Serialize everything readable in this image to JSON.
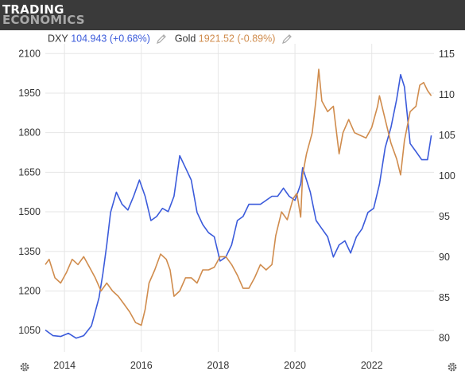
{
  "brand": {
    "line1": "TRADING",
    "line2": "ECONOMICS"
  },
  "legend": {
    "dxy_name": "DXY",
    "dxy_value": "104.943 (+0.68%)",
    "gold_name": "Gold",
    "gold_value": "1921.52 (-0.89%)"
  },
  "colors": {
    "dxy": "#3b5bdb",
    "gold": "#d08c4d",
    "grid": "#e6e6e6",
    "axis_text": "#333333"
  },
  "icons": [
    "pencil-icon",
    "gear-icon"
  ],
  "chart_data": {
    "type": "line",
    "x_ticks": [
      "2014",
      "2016",
      "2018",
      "2020",
      "2022"
    ],
    "left_axis": {
      "ticks": [
        1050,
        1200,
        1350,
        1500,
        1650,
        1800,
        1950,
        2100
      ],
      "range": [
        969,
        2137
      ]
    },
    "right_axis": {
      "ticks": [
        80,
        85,
        90,
        95,
        100,
        105,
        110,
        115
      ],
      "range": [
        78.3,
        116.3
      ]
    },
    "grid": true,
    "series": [
      {
        "name": "DXY",
        "axis": "right",
        "x": [
          2013.5,
          2013.7,
          2013.9,
          2014.1,
          2014.3,
          2014.5,
          2014.7,
          2014.9,
          2015.0,
          2015.1,
          2015.2,
          2015.35,
          2015.5,
          2015.65,
          2015.8,
          2015.95,
          2016.1,
          2016.25,
          2016.4,
          2016.55,
          2016.7,
          2016.85,
          2017.0,
          2017.15,
          2017.3,
          2017.45,
          2017.6,
          2017.75,
          2017.9,
          2018.05,
          2018.2,
          2018.35,
          2018.5,
          2018.65,
          2018.8,
          2018.95,
          2019.1,
          2019.25,
          2019.4,
          2019.55,
          2019.7,
          2019.85,
          2020.0,
          2020.15,
          2020.2,
          2020.3,
          2020.4,
          2020.55,
          2020.7,
          2020.85,
          2021.0,
          2021.15,
          2021.3,
          2021.45,
          2021.6,
          2021.75,
          2021.9,
          2022.05,
          2022.2,
          2022.35,
          2022.5,
          2022.65,
          2022.75,
          2022.85,
          2023.0,
          2023.15,
          2023.3,
          2023.45,
          2023.55
        ],
        "values": [
          81.0,
          80.3,
          80.2,
          80.6,
          80.0,
          80.3,
          81.5,
          85.0,
          88.0,
          91.5,
          95.5,
          98.0,
          96.5,
          95.8,
          97.5,
          99.5,
          97.5,
          94.5,
          95.0,
          96.0,
          95.6,
          97.5,
          102.5,
          101.0,
          99.5,
          95.5,
          94.0,
          93.0,
          92.5,
          89.5,
          90.0,
          91.5,
          94.5,
          95.0,
          96.5,
          96.5,
          96.5,
          97.0,
          97.5,
          97.5,
          98.5,
          97.5,
          97.0,
          99.0,
          101.0,
          99.5,
          98.0,
          94.5,
          93.5,
          92.5,
          90.0,
          91.5,
          92.0,
          90.5,
          92.5,
          93.5,
          95.5,
          96.0,
          99.0,
          103.5,
          106.0,
          109.5,
          112.5,
          111.0,
          104.0,
          103.0,
          102.0,
          102.0,
          105.0
        ]
      },
      {
        "name": "Gold",
        "axis": "left",
        "x": [
          2013.5,
          2013.6,
          2013.75,
          2013.9,
          2014.05,
          2014.2,
          2014.35,
          2014.5,
          2014.65,
          2014.8,
          2014.95,
          2015.1,
          2015.25,
          2015.4,
          2015.55,
          2015.7,
          2015.85,
          2016.0,
          2016.1,
          2016.2,
          2016.35,
          2016.5,
          2016.65,
          2016.75,
          2016.85,
          2017.0,
          2017.15,
          2017.3,
          2017.45,
          2017.6,
          2017.75,
          2017.9,
          2018.05,
          2018.2,
          2018.35,
          2018.5,
          2018.65,
          2018.8,
          2018.95,
          2019.1,
          2019.25,
          2019.4,
          2019.5,
          2019.65,
          2019.8,
          2019.95,
          2020.05,
          2020.15,
          2020.2,
          2020.3,
          2020.45,
          2020.55,
          2020.62,
          2020.7,
          2020.85,
          2021.0,
          2021.15,
          2021.25,
          2021.4,
          2021.55,
          2021.7,
          2021.85,
          2022.0,
          2022.15,
          2022.2,
          2022.35,
          2022.5,
          2022.65,
          2022.75,
          2022.85,
          2023.0,
          2023.15,
          2023.25,
          2023.35,
          2023.45,
          2023.55
        ],
        "values": [
          1300,
          1320,
          1250,
          1230,
          1270,
          1320,
          1300,
          1330,
          1290,
          1250,
          1200,
          1230,
          1200,
          1180,
          1150,
          1120,
          1080,
          1070,
          1130,
          1230,
          1280,
          1340,
          1320,
          1280,
          1180,
          1200,
          1250,
          1250,
          1230,
          1280,
          1280,
          1290,
          1330,
          1330,
          1300,
          1260,
          1210,
          1210,
          1250,
          1300,
          1280,
          1300,
          1410,
          1500,
          1470,
          1550,
          1570,
          1480,
          1640,
          1720,
          1800,
          1930,
          2040,
          1920,
          1880,
          1900,
          1720,
          1800,
          1850,
          1800,
          1790,
          1780,
          1820,
          1900,
          1940,
          1850,
          1760,
          1700,
          1640,
          1770,
          1880,
          1900,
          1980,
          1990,
          1960,
          1940
        ]
      }
    ]
  }
}
